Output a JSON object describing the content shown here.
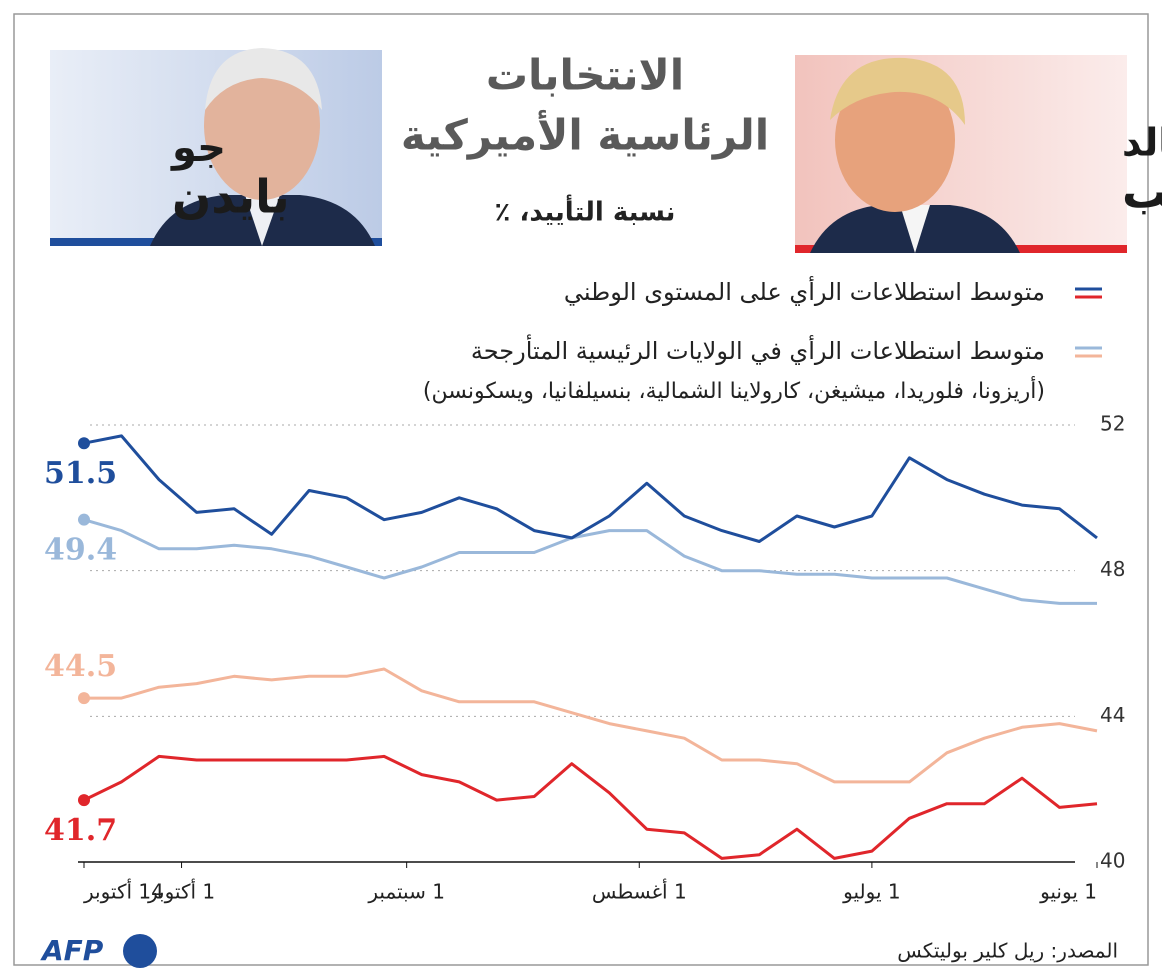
{
  "header": {
    "title": [
      "الانتخابات",
      "الرئاسية الأميركية"
    ],
    "subtitle": "نسبة التأييد، ٪",
    "candidates": [
      {
        "first": "جو",
        "last": "بايدن"
      },
      {
        "first": "دونالد",
        "last": "ترامب"
      }
    ]
  },
  "chart_data": {
    "type": "line",
    "x": [
      0,
      5,
      10,
      15,
      20,
      25,
      30,
      35,
      40,
      45,
      50,
      55,
      60,
      65,
      70,
      75,
      80,
      85,
      90,
      95,
      100,
      105,
      110,
      115,
      120,
      125,
      130,
      135
    ],
    "xlim": [
      0,
      135
    ],
    "x_reversed": true,
    "xticks": [
      {
        "value": 0,
        "label": "1 يونيو"
      },
      {
        "value": 30,
        "label": "1 يوليو"
      },
      {
        "value": 61,
        "label": "1 أغسطس"
      },
      {
        "value": 92,
        "label": "1 سبتمبر"
      },
      {
        "value": 122,
        "label": "1 أكتوبر"
      },
      {
        "value": 135,
        "label": "14 أكتوبر"
      }
    ],
    "ylim": [
      40,
      52
    ],
    "yticks": [
      40,
      44,
      48,
      52
    ],
    "grid": true,
    "series": [
      {
        "name": "متوسط استطلاعات الرأي على المستوى الوطني",
        "color": "#1f4e9c",
        "values": [
          48.9,
          49.7,
          49.8,
          50.1,
          50.5,
          51.1,
          49.5,
          49.2,
          49.5,
          48.8,
          49.1,
          49.5,
          50.4,
          49.5,
          48.9,
          49.1,
          49.7,
          50.0,
          49.6,
          49.4,
          50.0,
          50.2,
          49.0,
          49.7,
          49.6,
          50.5,
          51.7,
          51.5
        ]
      },
      {
        "name": "متوسط استطلاعات الرأي على المستوى الوطني",
        "color": "#e0262b",
        "values": [
          41.6,
          41.5,
          42.3,
          41.6,
          41.6,
          41.2,
          40.3,
          40.1,
          40.9,
          40.2,
          40.1,
          40.8,
          40.9,
          41.9,
          42.7,
          41.8,
          41.7,
          42.2,
          42.4,
          42.9,
          42.8,
          42.8,
          42.8,
          42.8,
          42.8,
          42.9,
          42.2,
          41.7
        ]
      },
      {
        "name": "متوسط استطلاعات الرأي في الولايات الرئيسية المتأرجحة",
        "color": "#9ab8da",
        "values": [
          47.1,
          47.1,
          47.2,
          47.5,
          47.8,
          47.8,
          47.8,
          47.9,
          47.9,
          48.0,
          48.0,
          48.4,
          49.1,
          49.1,
          48.9,
          48.5,
          48.5,
          48.5,
          48.1,
          47.8,
          48.1,
          48.4,
          48.6,
          48.7,
          48.6,
          48.6,
          49.1,
          49.4
        ]
      },
      {
        "name": "متوسط استطلاعات الرأي في الولايات الرئيسية المتأرجحة",
        "color": "#f3b59a",
        "values": [
          43.6,
          43.8,
          43.7,
          43.4,
          43.0,
          42.2,
          42.2,
          42.2,
          42.7,
          42.8,
          42.8,
          43.4,
          43.6,
          43.8,
          44.1,
          44.4,
          44.4,
          44.4,
          44.7,
          45.3,
          45.1,
          45.1,
          45.0,
          45.1,
          44.9,
          44.8,
          44.5,
          44.5
        ]
      }
    ],
    "legend_note": "(أريزونا، فلوريدا، ميشيغن، كارولاينا الشمالية، بنسيلفانيا، ويسكونسن)"
  },
  "footer": {
    "logo": "AFP",
    "source": "المصدر: ريل كلير بوليتكس"
  }
}
